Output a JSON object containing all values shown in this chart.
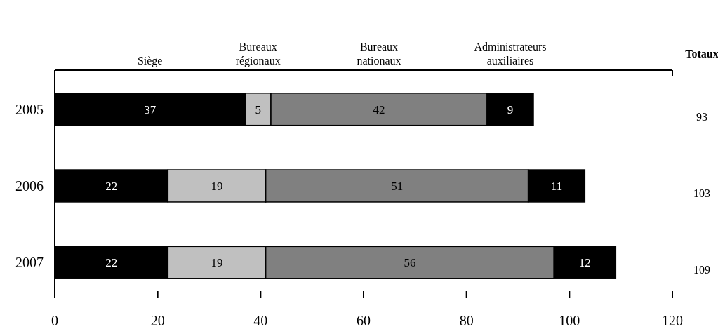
{
  "chart_data": {
    "type": "bar",
    "orientation": "horizontal",
    "stacked": true,
    "categories": [
      "2005",
      "2006",
      "2007"
    ],
    "series": [
      {
        "name": "Siège",
        "color": "#000000",
        "values": [
          37,
          22,
          22
        ]
      },
      {
        "name": "Bureaux régionaux",
        "color": "#c0c0c0",
        "values": [
          5,
          19,
          19
        ]
      },
      {
        "name": "Bureaux nationaux",
        "color": "#808080",
        "values": [
          42,
          51,
          56
        ]
      },
      {
        "name": "Administrateurs auxiliaires",
        "color": "#000000",
        "values": [
          9,
          11,
          12
        ]
      }
    ],
    "xlim": [
      0,
      120
    ],
    "xticks": [
      0,
      20,
      40,
      60,
      80,
      100,
      120
    ],
    "data_labels": true,
    "legend": "top",
    "annotations": [
      "Totaux",
      "93",
      "103",
      "109"
    ]
  }
}
